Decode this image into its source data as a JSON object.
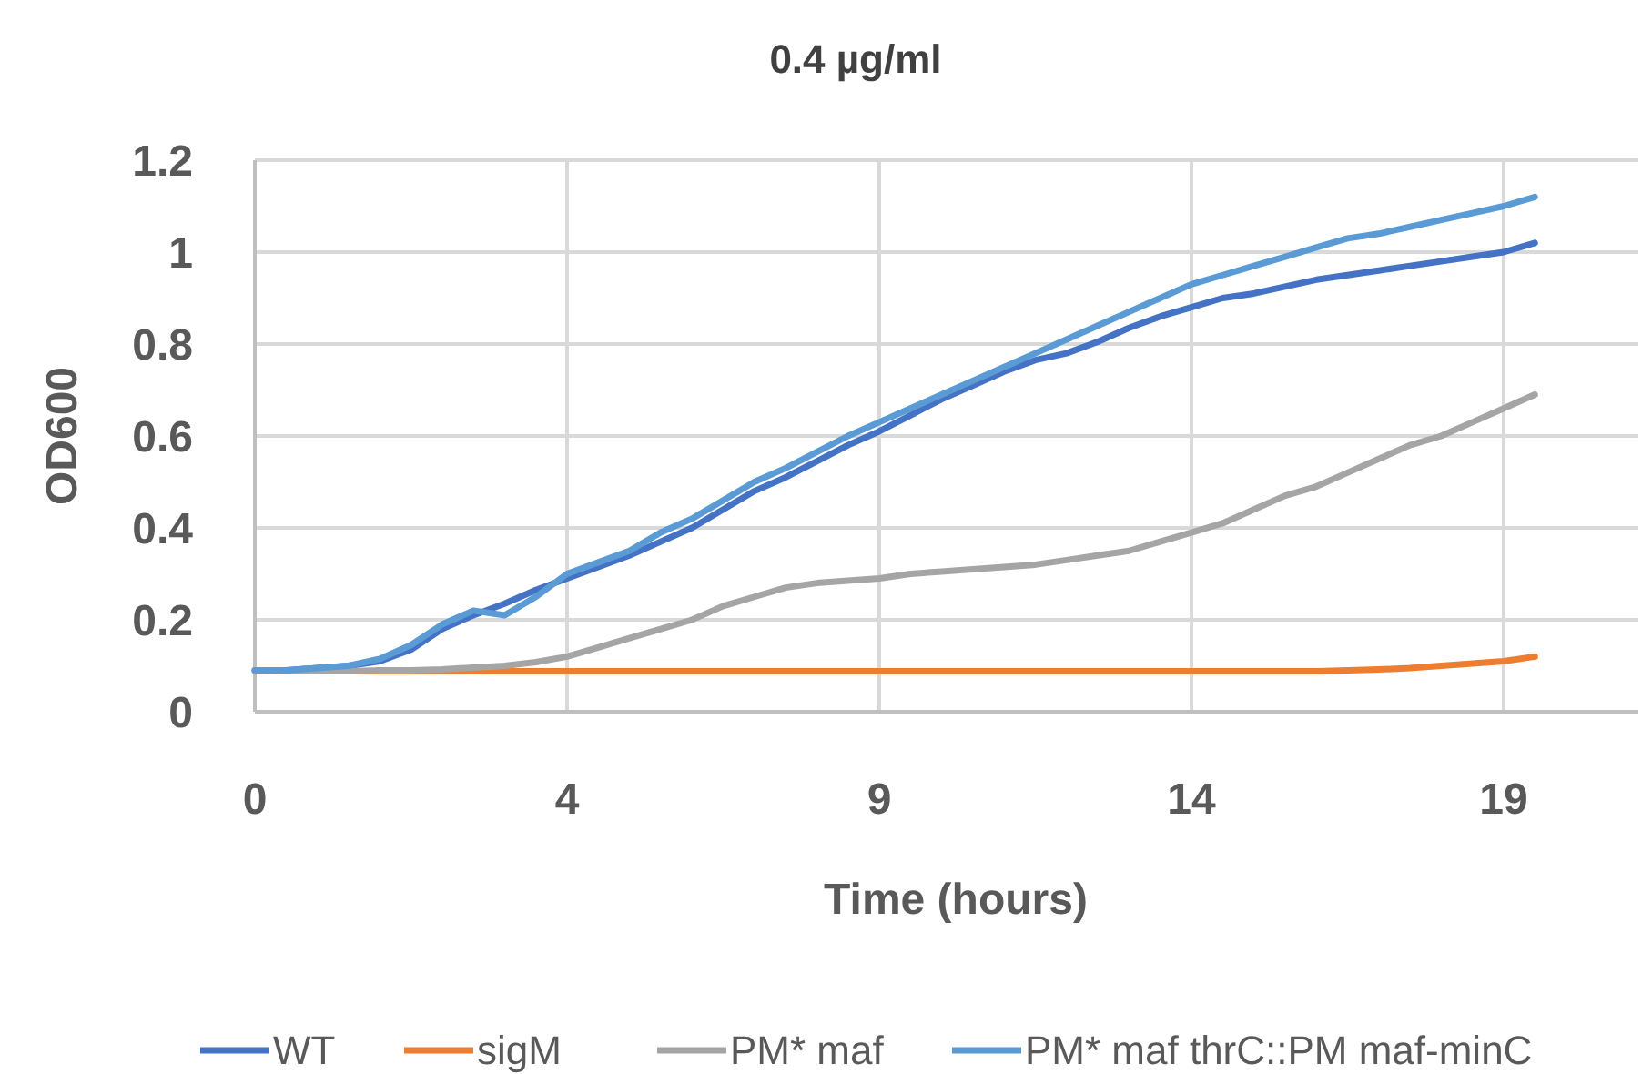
{
  "chart_data": {
    "type": "line",
    "title": "0.4 µg/ml",
    "xlabel": "Time (hours)",
    "ylabel": "OD600",
    "categories": [
      "0",
      null,
      null,
      null,
      null,
      null,
      null,
      null,
      null,
      null,
      "4",
      null,
      null,
      null,
      null,
      null,
      null,
      null,
      null,
      null,
      "9",
      null,
      null,
      null,
      null,
      null,
      null,
      null,
      null,
      null,
      "14",
      null,
      null,
      null,
      null,
      null,
      null,
      null,
      null,
      null,
      "19",
      null
    ],
    "ylim": [
      0,
      1.2
    ],
    "yticks": [
      0,
      0.2,
      0.4,
      0.6,
      0.8,
      1,
      1.2
    ],
    "grid": true,
    "legend": "bottom",
    "marker": "none",
    "line_style": "solid",
    "series": [
      {
        "name": "WT",
        "color": "#4472c4",
        "values": [
          0.09,
          0.09,
          0.095,
          0.1,
          0.11,
          0.135,
          0.18,
          0.21,
          0.235,
          0.265,
          0.29,
          0.315,
          0.34,
          0.37,
          0.4,
          0.44,
          0.48,
          0.51,
          0.545,
          0.58,
          0.61,
          0.645,
          0.68,
          0.71,
          0.74,
          0.765,
          0.78,
          0.805,
          0.835,
          0.86,
          0.88,
          0.9,
          0.91,
          0.925,
          0.94,
          0.95,
          0.96,
          0.97,
          0.98,
          0.99,
          1.0,
          1.02
        ]
      },
      {
        "name": "sigM",
        "color": "#ed7d31",
        "values": [
          null,
          null,
          null,
          0.088,
          0.088,
          0.088,
          0.088,
          0.088,
          0.088,
          0.088,
          0.088,
          0.088,
          0.088,
          0.088,
          0.088,
          0.088,
          0.088,
          0.088,
          0.088,
          0.088,
          0.088,
          0.088,
          0.088,
          0.088,
          0.088,
          0.088,
          0.088,
          0.088,
          0.088,
          0.088,
          0.088,
          0.088,
          0.088,
          0.088,
          0.088,
          0.09,
          0.092,
          0.095,
          0.1,
          0.105,
          0.11,
          0.12
        ]
      },
      {
        "name": "PM* maf",
        "color": "#a5a5a5",
        "values": [
          0.09,
          0.088,
          0.088,
          0.088,
          0.09,
          0.09,
          0.092,
          0.096,
          0.1,
          0.108,
          0.12,
          0.14,
          0.16,
          0.18,
          0.2,
          0.23,
          0.25,
          0.27,
          0.28,
          0.285,
          0.29,
          0.3,
          0.305,
          0.31,
          0.315,
          0.32,
          0.33,
          0.34,
          0.35,
          0.37,
          0.39,
          0.41,
          0.44,
          0.47,
          0.49,
          0.52,
          0.55,
          0.58,
          0.6,
          0.63,
          0.66,
          0.69
        ]
      },
      {
        "name": "PM* maf thrC::PM maf-minC",
        "color": "#5b9bd5",
        "values": [
          0.09,
          0.09,
          0.095,
          0.1,
          0.115,
          0.145,
          0.19,
          0.22,
          0.21,
          0.25,
          0.3,
          0.325,
          0.35,
          0.39,
          0.42,
          0.46,
          0.5,
          0.53,
          0.565,
          0.6,
          0.63,
          0.66,
          0.69,
          0.72,
          0.75,
          0.78,
          0.81,
          0.84,
          0.87,
          0.9,
          0.93,
          0.95,
          0.97,
          0.99,
          1.01,
          1.03,
          1.04,
          1.055,
          1.07,
          1.085,
          1.1,
          1.12
        ]
      }
    ]
  }
}
